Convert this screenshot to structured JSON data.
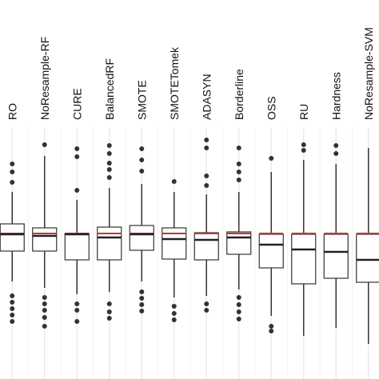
{
  "chart_data": {
    "type": "box",
    "categories": [
      "RO",
      "NoResample-RF",
      "CURE",
      "BalancedRF",
      "SMOTE",
      "SMOTETomek",
      "ADASYN",
      "Borderline",
      "OSS",
      "RU",
      "Hardness",
      "NoResample-SVM"
    ],
    "whisker_high": [
      234,
      279,
      224,
      239,
      244,
      234,
      231,
      234,
      259,
      274,
      269,
      289
    ],
    "q3": [
      194,
      189,
      182,
      190,
      192,
      189,
      183,
      184,
      181,
      181,
      181,
      181
    ],
    "median": [
      181,
      179,
      181,
      177,
      181,
      175,
      174,
      177,
      168,
      162,
      159,
      149
    ],
    "q1": [
      160,
      160,
      149,
      149,
      161,
      150,
      149,
      156,
      139,
      119,
      126,
      121
    ],
    "whisker_low": [
      122,
      114,
      106,
      109,
      122,
      102,
      104,
      112,
      79,
      54,
      64,
      44
    ],
    "outliers": [
      [
        269,
        259,
        246,
        104,
        96,
        88,
        80,
        72
      ],
      [
        293,
        102,
        94,
        86,
        77,
        66
      ],
      [
        288,
        278,
        236,
        94,
        86,
        72
      ],
      [
        292,
        282,
        270,
        262,
        252,
        94,
        84,
        76
      ],
      [
        288,
        274,
        260,
        109,
        101,
        93,
        85
      ],
      [
        247,
        91,
        82,
        74
      ],
      [
        299,
        289,
        254,
        242,
        94,
        86
      ],
      [
        289,
        269,
        259,
        249,
        102,
        93,
        84,
        75
      ],
      [
        276,
        66,
        60
      ],
      [
        293,
        286
      ],
      [
        292,
        282
      ],
      []
    ],
    "reference_line": 182,
    "reference_color": "#c0392b",
    "box_color": "#333333",
    "ylim": [
      0,
      314
    ],
    "grid": true
  }
}
